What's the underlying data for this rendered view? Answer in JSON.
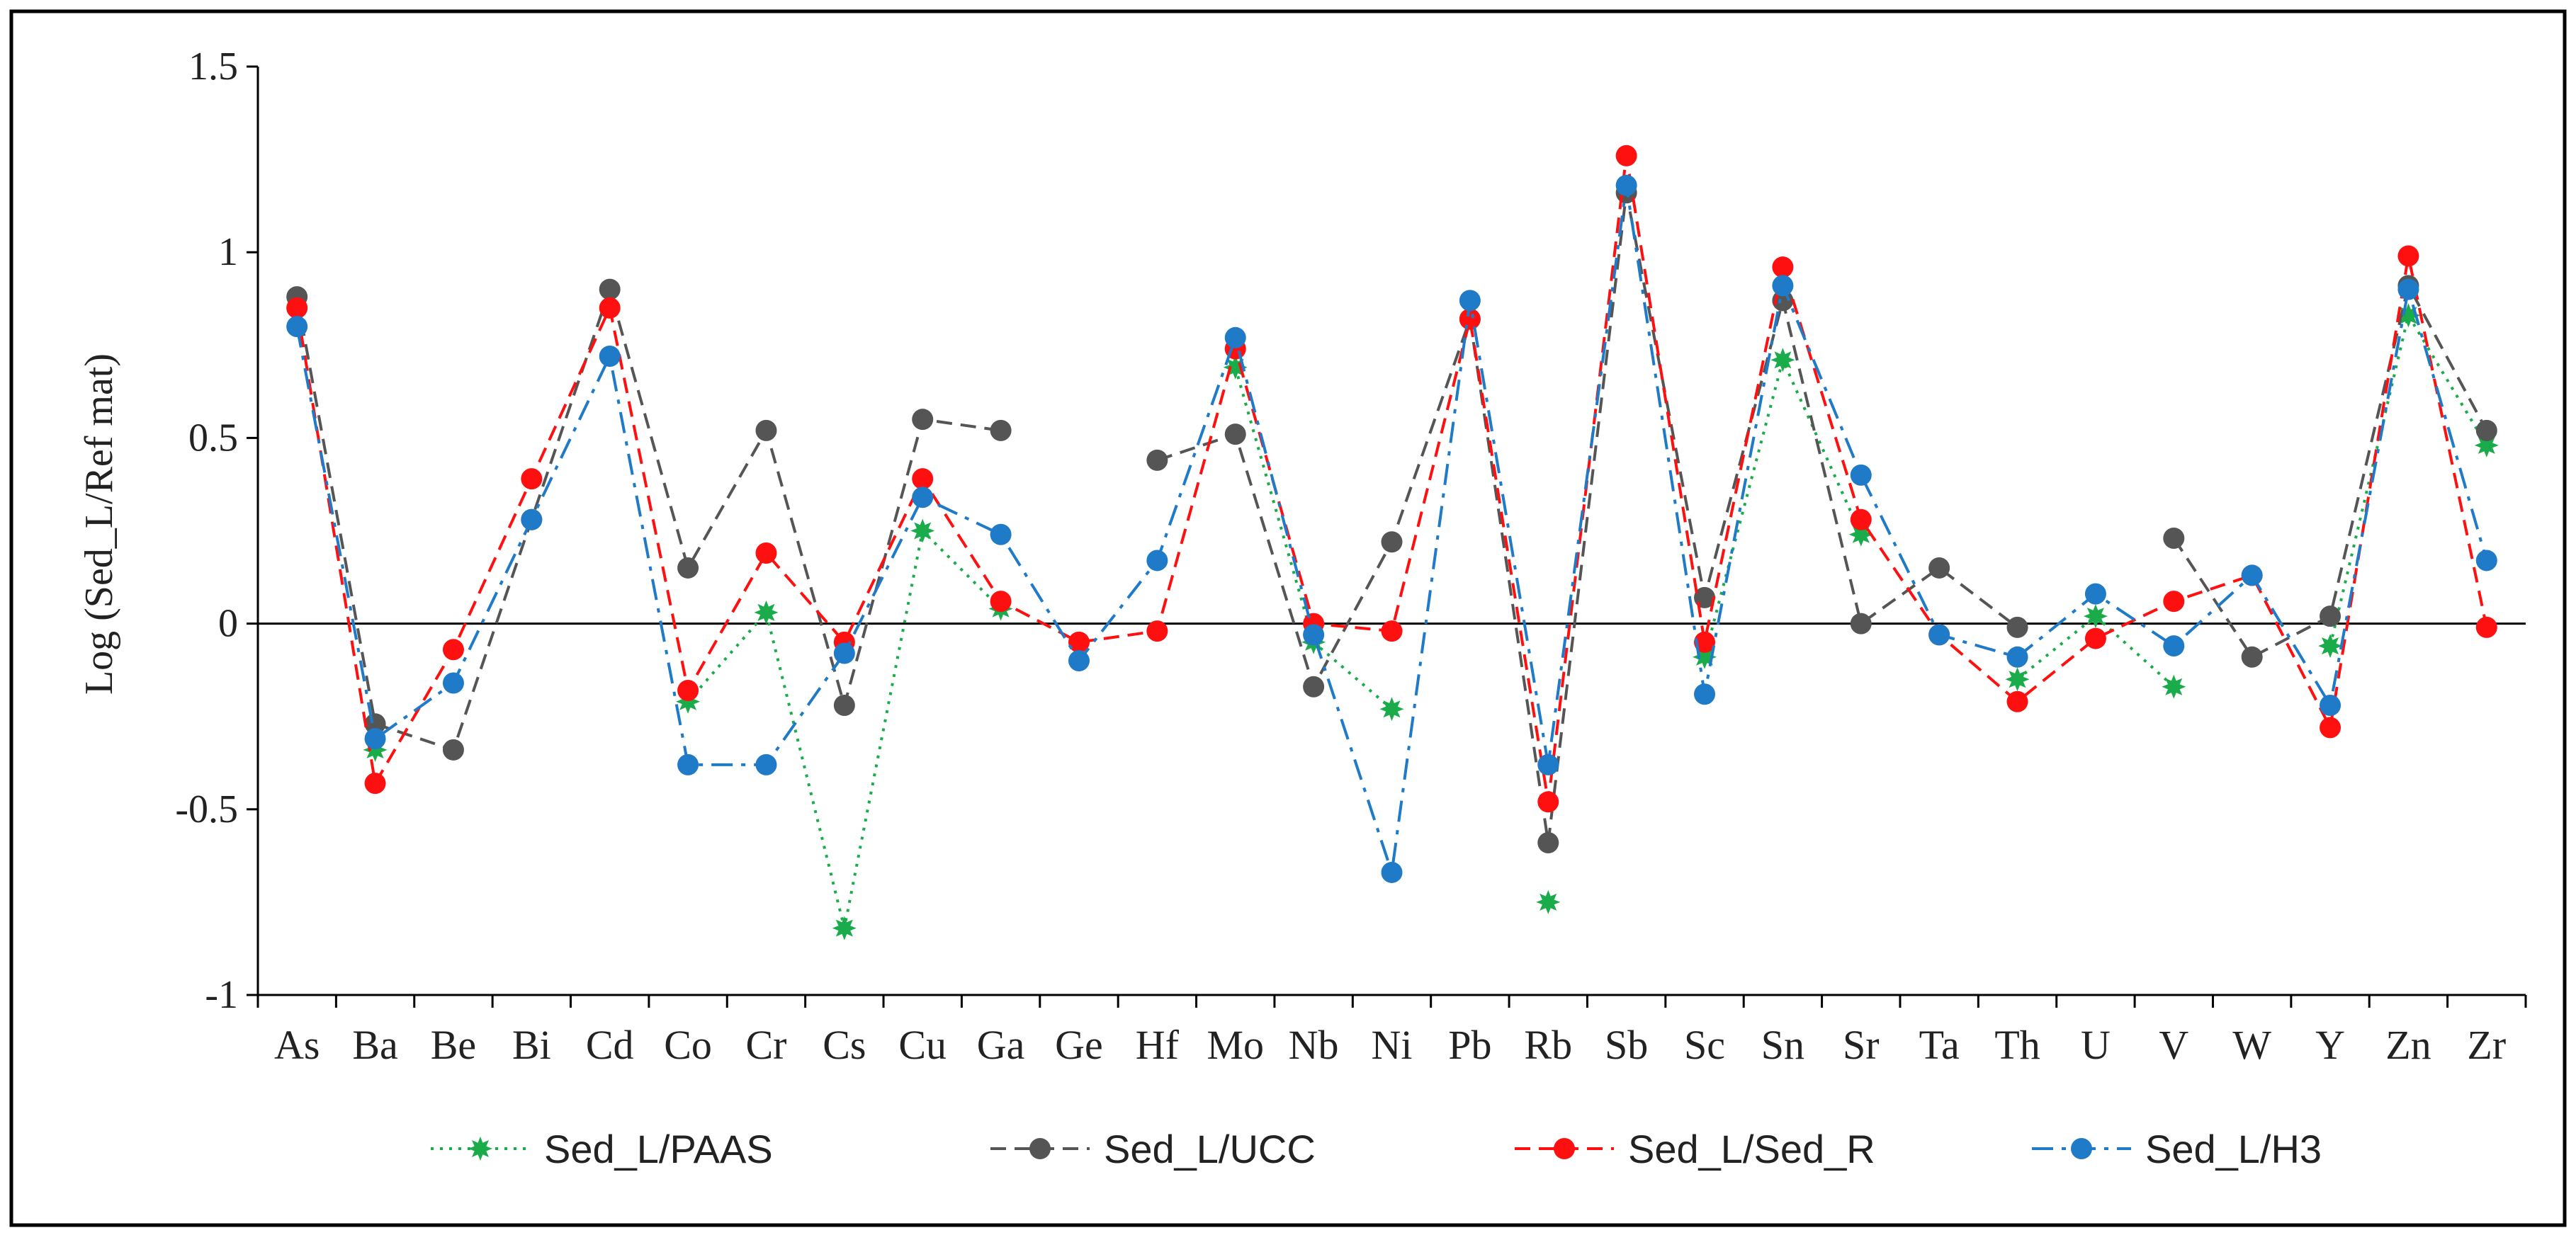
{
  "chart_data": {
    "type": "line",
    "title": "",
    "xlabel": "",
    "ylabel": "Log (Sed_L/Ref mat)",
    "ylim": [
      -1,
      1.5
    ],
    "yticks": [
      -1,
      -0.5,
      0,
      0.5,
      1,
      1.5
    ],
    "ytick_labels": [
      "-1",
      "-0.5",
      "0",
      "0.5",
      "1",
      "1.5"
    ],
    "grid": false,
    "legend_position": "bottom",
    "categories": [
      "As",
      "Ba",
      "Be",
      "Bi",
      "Cd",
      "Co",
      "Cr",
      "Cs",
      "Cu",
      "Ga",
      "Ge",
      "Hf",
      "Mo",
      "Nb",
      "Ni",
      "Pb",
      "Rb",
      "Sb",
      "Sc",
      "Sn",
      "Sr",
      "Ta",
      "Th",
      "U",
      "V",
      "W",
      "Y",
      "Zn",
      "Zr"
    ],
    "series": [
      {
        "name": "Sed_L/PAAS",
        "color": "#1aab4a",
        "dash": "dotted",
        "marker": "star",
        "values": [
          null,
          -0.34,
          null,
          null,
          null,
          -0.21,
          0.03,
          -0.82,
          0.25,
          0.04,
          null,
          null,
          0.69,
          -0.05,
          -0.23,
          null,
          -0.75,
          null,
          -0.09,
          0.71,
          0.24,
          null,
          -0.15,
          0.02,
          -0.17,
          null,
          -0.06,
          0.83,
          0.48
        ]
      },
      {
        "name": "Sed_L/UCC",
        "color": "#555555",
        "dash": "dashed",
        "marker": "circle",
        "values": [
          0.88,
          -0.27,
          -0.34,
          0.28,
          0.9,
          0.15,
          0.52,
          -0.22,
          0.55,
          0.52,
          null,
          0.44,
          0.51,
          -0.17,
          0.22,
          0.82,
          -0.59,
          1.16,
          0.07,
          0.87,
          0.0,
          0.15,
          -0.01,
          null,
          0.23,
          -0.09,
          0.02,
          0.91,
          0.52
        ]
      },
      {
        "name": "Sed_L/Sed_R",
        "color": "#ff1010",
        "dash": "dashed",
        "marker": "circle",
        "values": [
          0.85,
          -0.43,
          -0.07,
          0.39,
          0.85,
          -0.18,
          0.19,
          -0.05,
          0.39,
          0.06,
          -0.05,
          -0.02,
          0.74,
          0.0,
          -0.02,
          0.82,
          -0.48,
          1.26,
          -0.05,
          0.96,
          0.28,
          -0.03,
          -0.21,
          -0.04,
          0.06,
          0.13,
          -0.28,
          0.99,
          -0.01
        ]
      },
      {
        "name": "Sed_L/H3",
        "color": "#1f7ac8",
        "dash": "dashdot",
        "marker": "circle",
        "values": [
          0.8,
          -0.31,
          -0.16,
          0.28,
          0.72,
          -0.38,
          -0.38,
          -0.08,
          0.34,
          0.24,
          -0.1,
          0.17,
          0.77,
          -0.03,
          -0.67,
          0.87,
          -0.38,
          1.18,
          -0.19,
          0.91,
          0.4,
          -0.03,
          -0.09,
          0.08,
          -0.06,
          0.13,
          -0.22,
          0.9,
          0.17
        ]
      }
    ]
  }
}
